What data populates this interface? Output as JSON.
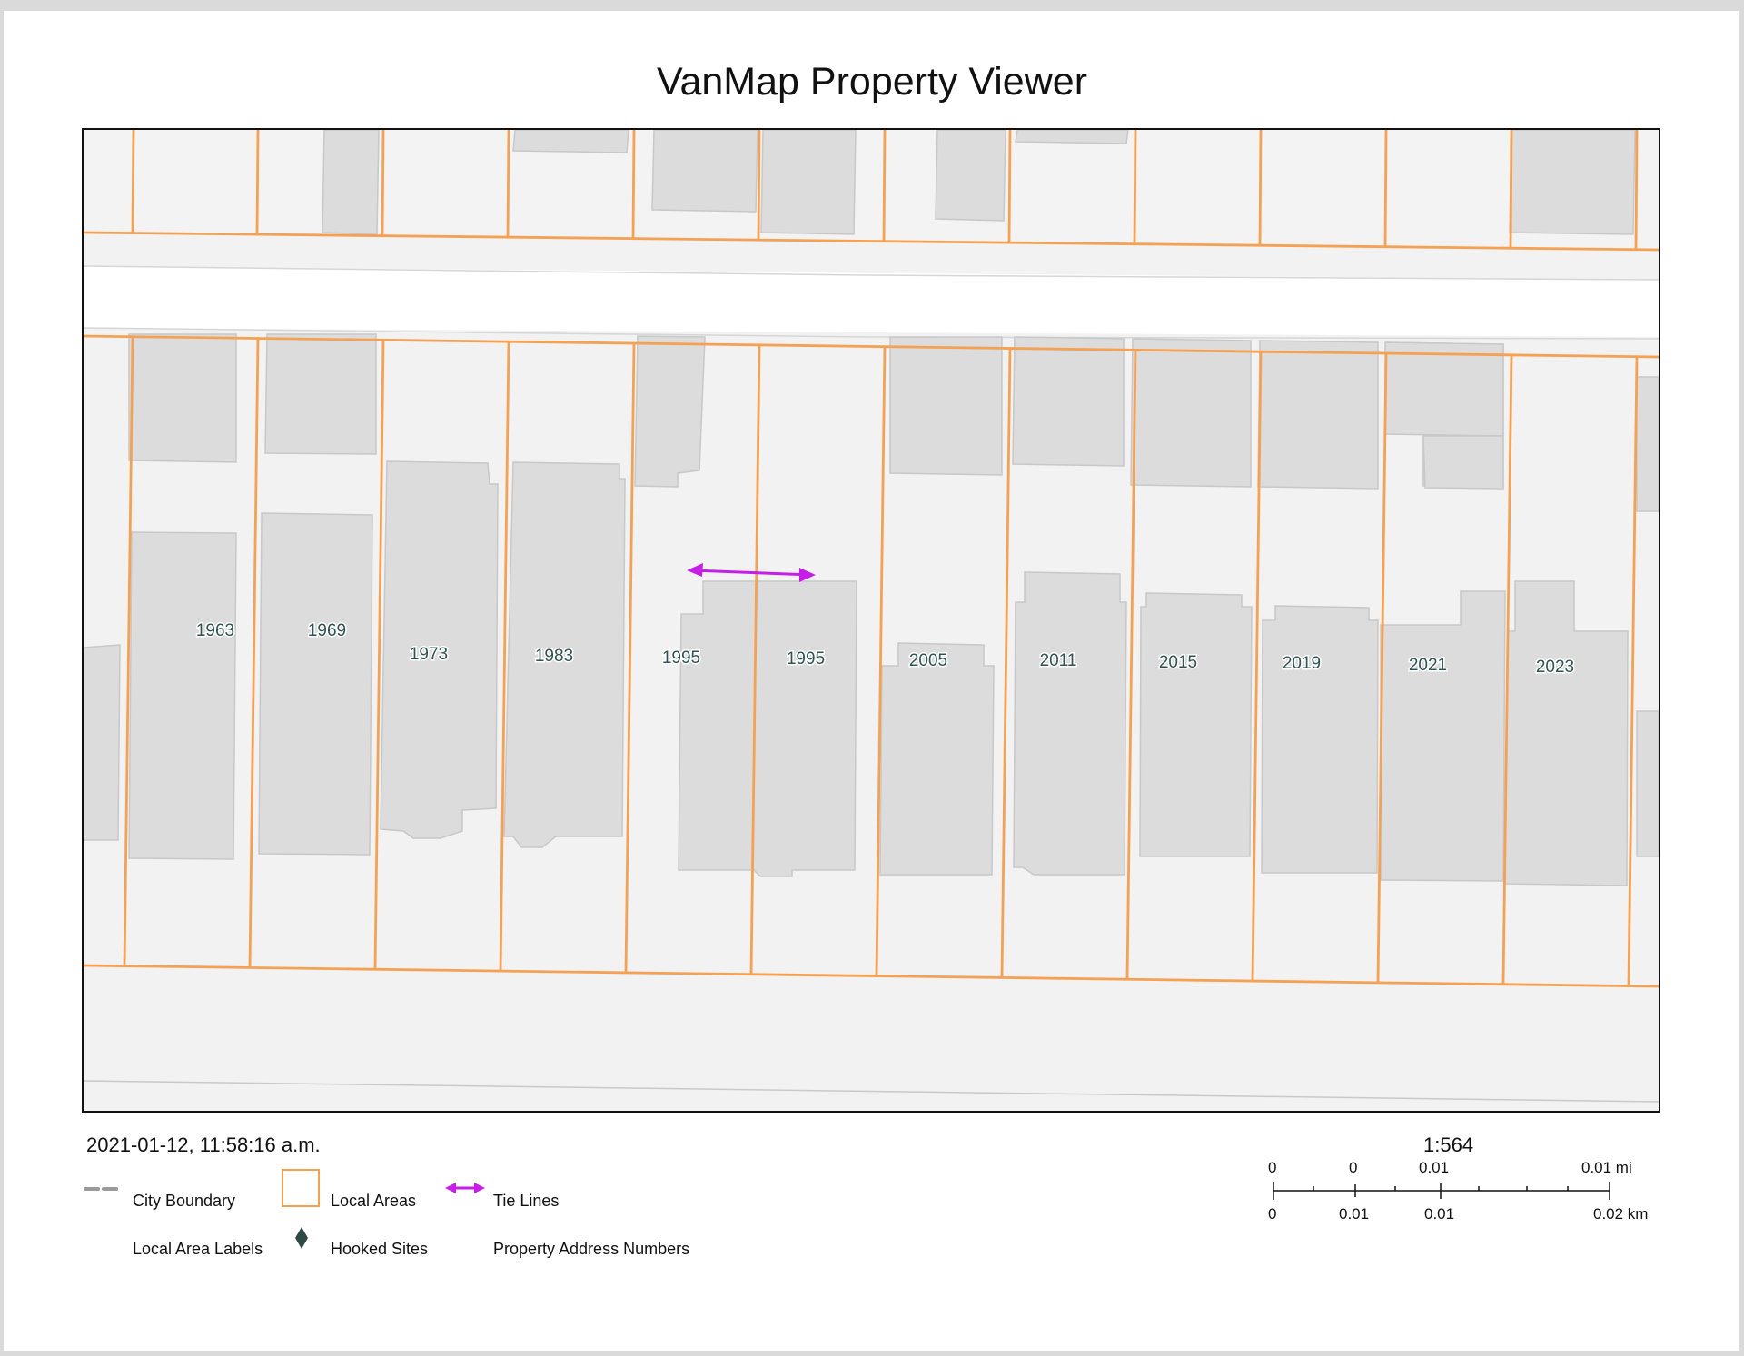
{
  "title": "VanMap Property Viewer",
  "timestamp": "2021-01-12, 11:58:16 a.m.",
  "address_numbers": [
    "1963",
    "1969",
    "1973",
    "1983",
    "1995",
    "1995",
    "2005",
    "2011",
    "2015",
    "2019",
    "2021",
    "2023"
  ],
  "legend": {
    "city_boundary": "City Boundary",
    "local_areas": "Local Areas",
    "tie_lines": "Tie Lines",
    "local_area_labels": "Local Area Labels",
    "hooked_sites": "Hooked Sites",
    "property_address_numbers": "Property Address Numbers"
  },
  "scale": {
    "ratio": "1:564",
    "mi_labels": [
      "0",
      "0",
      "0.01",
      "0.01 mi"
    ],
    "km_labels": [
      "0",
      "0.01",
      "0.01",
      "0.02 km"
    ]
  },
  "colors": {
    "parcel_line": "#f4a154",
    "building": "#dcdcdc",
    "road": "#f2f2f2",
    "tie_line": "#c51ee6",
    "label": "#2f5350"
  }
}
